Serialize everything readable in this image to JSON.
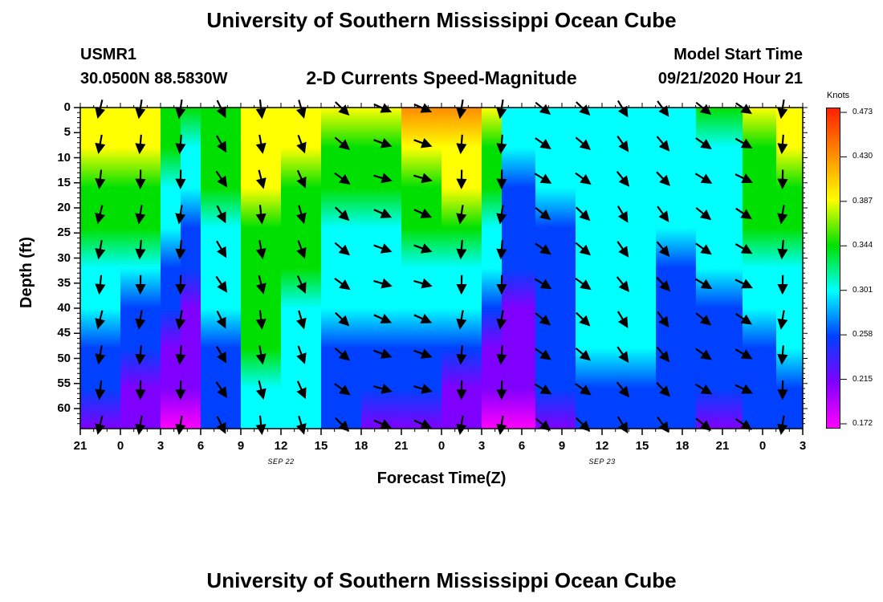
{
  "page": {
    "title_top": "University of Southern Mississippi Ocean Cube",
    "title_bottom": "University of Southern Mississippi Ocean Cube",
    "station_id": "USMR1",
    "location": "30.0500N 88.5830W",
    "plot_title": "2-D Currents Speed-Magnitude",
    "model_start_label": "Model Start Time",
    "model_start_value": "09/21/2020 Hour 21"
  },
  "colors": {
    "magenta": "#ff00ff",
    "purple": "#8000ff",
    "blue": "#0040ff",
    "cyan": "#00ffff",
    "green": "#00e000",
    "yellow": "#ffff00",
    "orange": "#ff8c00",
    "red": "#ff2000",
    "arrow": "#000000"
  },
  "chart_data": {
    "type": "heatmap",
    "title": "2-D Currents Speed-Magnitude",
    "xlabel": "Forecast Time(Z)",
    "ylabel": "Depth (ft)",
    "x_tick_labels": [
      "21",
      "0",
      "3",
      "6",
      "9",
      "12",
      "15",
      "18",
      "21",
      "0",
      "3",
      "6",
      "9",
      "12",
      "15",
      "18",
      "21",
      "0",
      "3"
    ],
    "x_date_labels": [
      {
        "label": "SEP 22",
        "tick_index": 5
      },
      {
        "label": "SEP 23",
        "tick_index": 13
      }
    ],
    "xlim_hours": [
      0,
      54
    ],
    "y_tick_labels": [
      "0",
      "5",
      "10",
      "15",
      "20",
      "25",
      "30",
      "35",
      "40",
      "45",
      "50",
      "55",
      "60"
    ],
    "y_tick_values": [
      0,
      5,
      10,
      15,
      20,
      25,
      30,
      35,
      40,
      45,
      50,
      55,
      60
    ],
    "ylim_ft": [
      0,
      64
    ],
    "colorbar": {
      "unit": "Knots",
      "ticks": [
        "0.473",
        "0.430",
        "0.387",
        "0.344",
        "0.301",
        "0.258",
        "0.215",
        "0.172"
      ],
      "min": 0.172,
      "max": 0.473
    },
    "vector_times_hours": [
      1.5,
      4.5,
      7.5,
      10.5,
      13.5,
      16.5,
      19.5,
      22.5,
      25.5,
      28.5,
      31.5,
      34.5,
      37.5,
      40.5,
      43.5,
      46.5,
      49.5,
      52.5
    ],
    "vector_depths_ft": [
      0,
      7,
      14,
      21,
      28,
      35,
      42,
      49,
      56,
      63
    ],
    "vector_directions_deg": [
      260,
      265,
      265,
      -60,
      -80,
      -70,
      -40,
      -20,
      -20,
      265,
      265,
      -35,
      -40,
      -55,
      -50,
      -35,
      -30,
      265
    ],
    "speed_profile": [
      {
        "t": 0.0,
        "surface": 0.37,
        "bottom": 0.25
      },
      {
        "t": 3.0,
        "surface": 0.41,
        "bottom": 0.215
      },
      {
        "t": 6.0,
        "surface": 0.4,
        "bottom": 0.2
      },
      {
        "t": 7.5,
        "surface": 0.32,
        "bottom": 0.175
      },
      {
        "t": 9.0,
        "surface": 0.33,
        "bottom": 0.2
      },
      {
        "t": 12.0,
        "surface": 0.395,
        "bottom": 0.3
      },
      {
        "t": 15.0,
        "surface": 0.405,
        "bottom": 0.31
      },
      {
        "t": 18.0,
        "surface": 0.38,
        "bottom": 0.25
      },
      {
        "t": 21.0,
        "surface": 0.355,
        "bottom": 0.24
      },
      {
        "t": 24.0,
        "surface": 0.39,
        "bottom": 0.23
      },
      {
        "t": 27.0,
        "surface": 0.45,
        "bottom": 0.2
      },
      {
        "t": 30.0,
        "surface": 0.44,
        "bottom": 0.2
      },
      {
        "t": 31.5,
        "surface": 0.33,
        "bottom": 0.18
      },
      {
        "t": 34.0,
        "surface": 0.3,
        "bottom": 0.2
      },
      {
        "t": 37.0,
        "surface": 0.31,
        "bottom": 0.27
      },
      {
        "t": 40.0,
        "surface": 0.31,
        "bottom": 0.28
      },
      {
        "t": 43.0,
        "surface": 0.32,
        "bottom": 0.26
      },
      {
        "t": 46.0,
        "surface": 0.31,
        "bottom": 0.23
      },
      {
        "t": 49.5,
        "surface": 0.36,
        "bottom": 0.24
      },
      {
        "t": 52.0,
        "surface": 0.39,
        "bottom": 0.26
      },
      {
        "t": 54.0,
        "surface": 0.385,
        "bottom": 0.25
      }
    ]
  }
}
